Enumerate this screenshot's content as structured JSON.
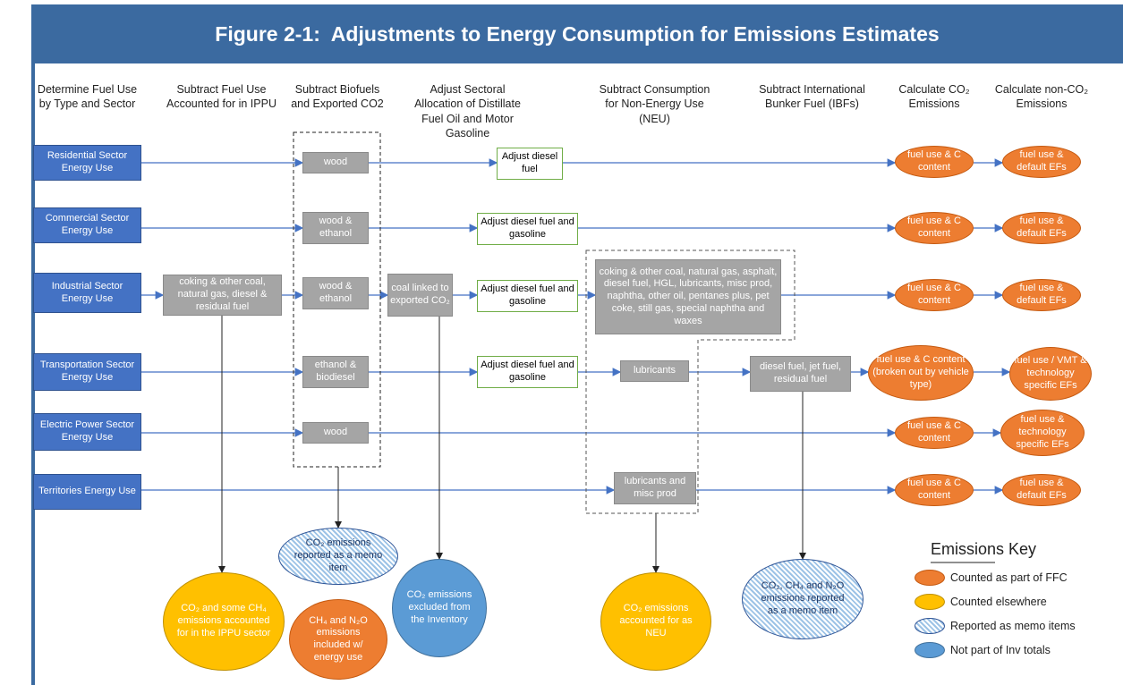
{
  "title": "Figure 2-1:  Adjustments to Energy Consumption for Emissions Estimates",
  "headers": [
    "Determine Fuel Use by Type and Sector",
    "Subtract Fuel Use Accounted for in IPPU",
    "Subtract Biofuels and Exported CO2",
    "Adjust Sectoral Allocation of Distillate Fuel Oil and Motor Gasoline",
    "Subtract Consumption for Non-Energy Use (NEU)",
    "Subtract International Bunker Fuel (IBFs)",
    "Calculate CO₂ Emissions",
    "Calculate non-CO₂ Emissions"
  ],
  "sources": [
    "Residential Sector Energy Use",
    "Commercial Sector Energy Use",
    "Industrial Sector Energy Use",
    "Transportation Sector Energy Use",
    "Electric Power Sector Energy Use",
    "Territories Energy Use"
  ],
  "boxes": [
    "coking & other coal, natural gas, diesel & residual fuel",
    "wood",
    "wood & ethanol",
    "wood & ethanol",
    "ethanol & biodiesel",
    "wood",
    "coal linked to exported CO₂",
    "coking & other coal, natural gas, asphalt, diesel fuel, HGL, lubricants, misc prod, naphtha, other oil, pentanes plus, pet coke, still gas, special naphtha and waxes",
    "lubricants",
    "lubricants and misc prod",
    "diesel fuel, jet fuel, residual fuel"
  ],
  "adjustments": [
    "Adjust diesel fuel",
    "Adjust diesel fuel and gasoline",
    "Adjust diesel fuel and gasoline",
    "Adjust diesel fuel and gasoline"
  ],
  "results": [
    "fuel use & C content",
    "fuel use & default EFs",
    "fuel use & C content",
    "fuel use & default EFs",
    "fuel use & C content",
    "fuel use & default EFs",
    "fuel use & C content (broken out by vehicle type)",
    "fuel use  / VMT & technology specific EFs",
    "fuel use & C content",
    "fuel use  & technology specific EFs",
    "fuel use & C content",
    "fuel use & default EFs"
  ],
  "outcomes": [
    "CO₂ and  some CH₄ emissions accounted for in the IPPU sector",
    "CO₂ emissions reported as a memo item",
    "CH₄ and N₂O emissions included w/ energy use",
    "CO₂ emissions excluded from the Inventory",
    "CO₂ emissions accounted for as NEU",
    "CO₂, CH₄ and N₂O emissions reported as a memo item"
  ],
  "key": {
    "title": "Emissions Key",
    "items": [
      "Counted as part of FFC",
      "Counted elsewhere",
      "Reported as memo items",
      "Not part of Inv totals"
    ]
  }
}
